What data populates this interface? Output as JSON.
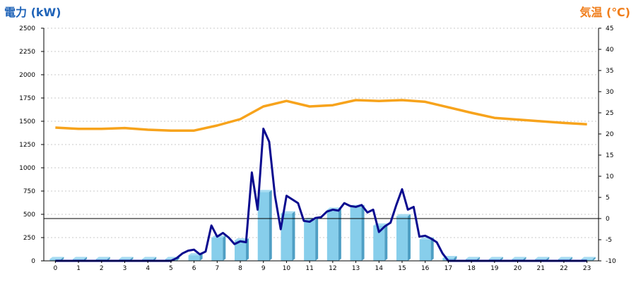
{
  "chart_data": {
    "type": "bar",
    "ylabel_left": "電力 (kW)",
    "ylabel_right": "気温 (℃)",
    "x_ticks": [
      "0",
      "1",
      "2",
      "3",
      "4",
      "5",
      "6",
      "7",
      "8",
      "9",
      "10",
      "11",
      "12",
      "13",
      "14",
      "15",
      "16",
      "17",
      "18",
      "19",
      "20",
      "21",
      "22",
      "23"
    ],
    "y_left_ticks": [
      "0",
      "250",
      "500",
      "750",
      "1000",
      "1250",
      "1500",
      "1750",
      "2000",
      "2250",
      "2500"
    ],
    "y_right_ticks": [
      "-10",
      "-5",
      "0",
      "5",
      "10",
      "15",
      "20",
      "25",
      "30",
      "35",
      "40",
      "45"
    ],
    "ylim_left": [
      0,
      2500
    ],
    "ylim_right": [
      -10,
      45
    ],
    "grid": true,
    "colors": {
      "bars": "#87ceeb",
      "bar_side": "#4f9fc4",
      "bar_top": "#a7dcf2",
      "bar_marker": "#5b9fd0",
      "power_line": "#0b0b8f",
      "temp_line": "#f7a31c",
      "left_title": "#1f63b8",
      "right_title": "#f07d1a"
    },
    "series": [
      {
        "type": "bar",
        "axis": "left",
        "values": [
          20,
          20,
          20,
          20,
          20,
          20,
          60,
          250,
          220,
          740,
          510,
          440,
          550,
          580,
          380,
          480,
          230,
          30,
          20,
          20,
          20,
          20,
          20,
          20
        ]
      },
      {
        "type": "line",
        "axis": "left",
        "x": [
          0,
          1,
          2,
          3,
          4,
          5,
          5.25,
          5.5,
          5.75,
          6,
          6.25,
          6.5,
          6.75,
          7,
          7.25,
          7.5,
          7.75,
          8,
          8.25,
          8.5,
          8.75,
          9,
          9.25,
          9.5,
          9.75,
          10,
          10.25,
          10.5,
          10.75,
          11,
          11.25,
          11.5,
          11.75,
          12,
          12.25,
          12.5,
          12.75,
          13,
          13.25,
          13.5,
          13.75,
          14,
          14.25,
          14.5,
          14.75,
          15,
          15.25,
          15.5,
          15.75,
          16,
          16.25,
          16.5,
          16.75,
          17,
          18,
          19,
          20,
          21,
          22,
          23
        ],
        "values": [
          0,
          0,
          0,
          0,
          0,
          0,
          30,
          80,
          110,
          120,
          70,
          100,
          380,
          260,
          300,
          250,
          180,
          210,
          200,
          950,
          550,
          1420,
          1280,
          700,
          340,
          700,
          660,
          620,
          430,
          420,
          460,
          470,
          530,
          550,
          540,
          620,
          590,
          580,
          600,
          520,
          550,
          310,
          370,
          410,
          600,
          770,
          550,
          580,
          260,
          270,
          240,
          200,
          80,
          0,
          0,
          0,
          0,
          0,
          0,
          0
        ]
      },
      {
        "type": "line",
        "axis": "right",
        "x": [
          0,
          1,
          2,
          3,
          4,
          5,
          6,
          7,
          8,
          9,
          10,
          11,
          12,
          13,
          14,
          15,
          16,
          17,
          18,
          19,
          20,
          21,
          22,
          23
        ],
        "values": [
          21.5,
          21.2,
          21.2,
          21.4,
          21.0,
          20.8,
          20.8,
          22,
          23.5,
          26.5,
          27.8,
          26.5,
          26.8,
          28,
          27.8,
          28,
          27.6,
          26.3,
          25,
          23.8,
          23.4,
          23.0,
          22.6,
          22.3
        ]
      }
    ]
  }
}
